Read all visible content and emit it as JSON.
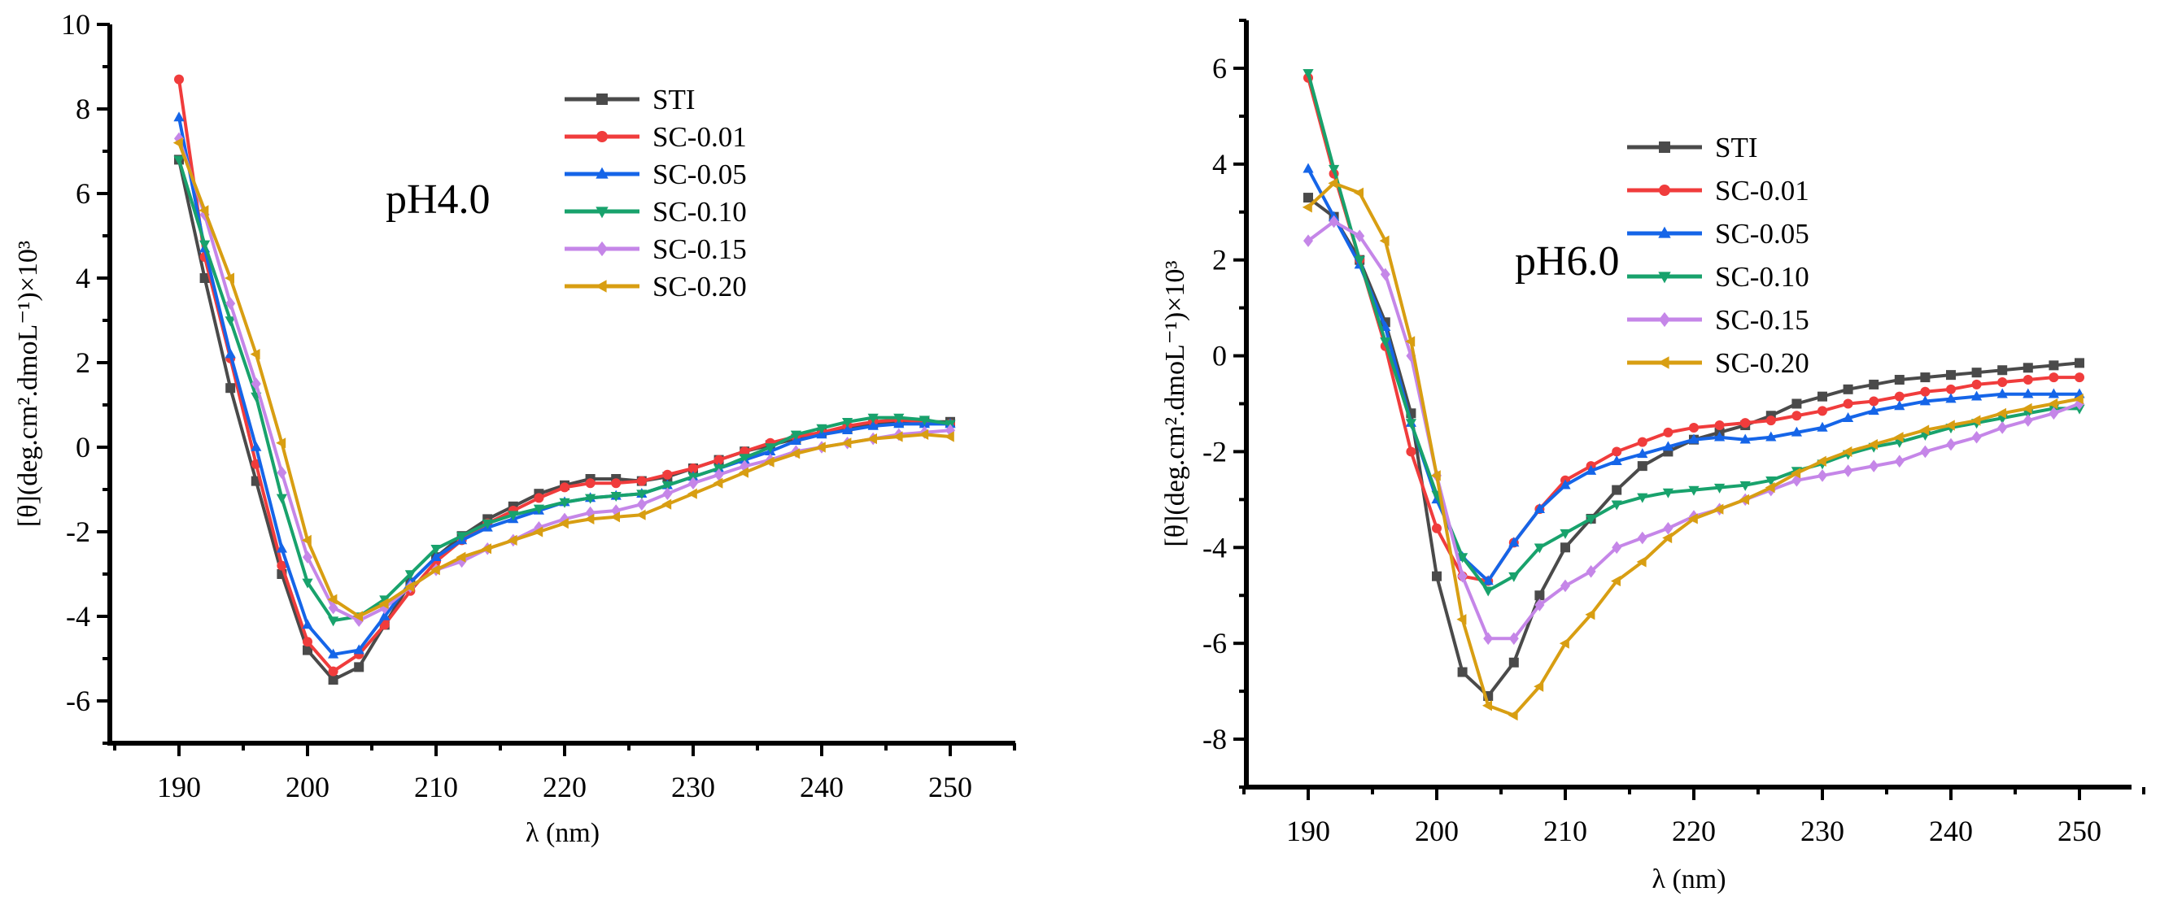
{
  "colors": {
    "STI": "#4a4a4a",
    "SC-0.01": "#f03c3c",
    "SC-0.05": "#1565e8",
    "SC-0.10": "#18a26c",
    "SC-0.15": "#c586e8",
    "SC-0.20": "#d89e12"
  },
  "markers": {
    "STI": "square",
    "SC-0.01": "circle",
    "SC-0.05": "triangle-up",
    "SC-0.10": "triangle-down",
    "SC-0.15": "diamond",
    "SC-0.20": "triangle-left"
  },
  "chart_data": [
    {
      "type": "line",
      "title": "pH4.0",
      "xlabel": "λ (nm)",
      "ylabel": "[θ](deg.cm².dmoL⁻¹)×10³",
      "xlim": [
        185,
        255
      ],
      "ylim": [
        -7,
        10
      ],
      "xticks": [
        190,
        200,
        210,
        220,
        230,
        240,
        250
      ],
      "yticks": [
        -6,
        -4,
        -2,
        0,
        2,
        4,
        6,
        8,
        10
      ],
      "grid": false,
      "legend_position": "top-right",
      "x": [
        190,
        192,
        194,
        196,
        198,
        200,
        202,
        204,
        206,
        208,
        210,
        212,
        214,
        216,
        218,
        220,
        222,
        224,
        226,
        228,
        230,
        232,
        234,
        236,
        238,
        240,
        242,
        244,
        246,
        248,
        250
      ],
      "series": [
        {
          "name": "STI",
          "values": [
            6.8,
            4.0,
            1.4,
            -0.8,
            -3.0,
            -4.8,
            -5.5,
            -5.2,
            -4.2,
            -3.2,
            -2.6,
            -2.1,
            -1.7,
            -1.4,
            -1.1,
            -0.9,
            -0.75,
            -0.75,
            -0.8,
            -0.7,
            -0.5,
            -0.3,
            -0.1,
            0.05,
            0.2,
            0.35,
            0.45,
            0.55,
            0.6,
            0.6,
            0.6
          ]
        },
        {
          "name": "SC-0.01",
          "values": [
            8.7,
            4.5,
            2.1,
            -0.4,
            -2.8,
            -4.6,
            -5.3,
            -4.9,
            -4.2,
            -3.4,
            -2.7,
            -2.2,
            -1.8,
            -1.5,
            -1.2,
            -0.95,
            -0.85,
            -0.85,
            -0.8,
            -0.65,
            -0.5,
            -0.3,
            -0.1,
            0.1,
            0.25,
            0.35,
            0.5,
            0.6,
            0.65,
            0.6,
            0.55
          ]
        },
        {
          "name": "SC-0.05",
          "values": [
            7.8,
            4.7,
            2.2,
            0.0,
            -2.4,
            -4.2,
            -4.9,
            -4.8,
            -4.0,
            -3.2,
            -2.6,
            -2.2,
            -1.9,
            -1.7,
            -1.5,
            -1.3,
            -1.2,
            -1.15,
            -1.1,
            -0.9,
            -0.7,
            -0.5,
            -0.3,
            -0.1,
            0.15,
            0.3,
            0.4,
            0.5,
            0.55,
            0.55,
            0.55
          ]
        },
        {
          "name": "SC-0.10",
          "values": [
            6.8,
            4.8,
            3.0,
            1.2,
            -1.2,
            -3.2,
            -4.1,
            -4.0,
            -3.6,
            -3.0,
            -2.4,
            -2.1,
            -1.8,
            -1.6,
            -1.45,
            -1.3,
            -1.2,
            -1.15,
            -1.1,
            -0.9,
            -0.7,
            -0.5,
            -0.25,
            0.0,
            0.3,
            0.45,
            0.6,
            0.7,
            0.7,
            0.65,
            0.55
          ]
        },
        {
          "name": "SC-0.15",
          "values": [
            7.3,
            5.5,
            3.4,
            1.5,
            -0.6,
            -2.6,
            -3.8,
            -4.1,
            -3.8,
            -3.3,
            -2.9,
            -2.7,
            -2.4,
            -2.2,
            -1.9,
            -1.7,
            -1.55,
            -1.5,
            -1.35,
            -1.1,
            -0.85,
            -0.65,
            -0.45,
            -0.3,
            -0.1,
            0.0,
            0.1,
            0.2,
            0.3,
            0.35,
            0.4
          ]
        },
        {
          "name": "SC-0.20",
          "values": [
            7.2,
            5.6,
            4.0,
            2.2,
            0.1,
            -2.2,
            -3.6,
            -4.0,
            -3.7,
            -3.3,
            -2.9,
            -2.6,
            -2.4,
            -2.2,
            -2.0,
            -1.8,
            -1.7,
            -1.65,
            -1.6,
            -1.35,
            -1.1,
            -0.85,
            -0.6,
            -0.35,
            -0.15,
            0.0,
            0.1,
            0.2,
            0.25,
            0.3,
            0.25
          ]
        }
      ]
    },
    {
      "type": "line",
      "title": "pH6.0",
      "xlabel": "λ (nm)",
      "ylabel": "[θ](deg.cm².dmoL⁻¹)×10³",
      "xlim": [
        185,
        255
      ],
      "ylim": [
        -9,
        7
      ],
      "xticks": [
        190,
        200,
        210,
        220,
        230,
        240,
        250
      ],
      "yticks": [
        -8,
        -6,
        -4,
        -2,
        0,
        2,
        4,
        6
      ],
      "grid": false,
      "legend_position": "top-right",
      "x": [
        190,
        192,
        194,
        196,
        198,
        200,
        202,
        204,
        206,
        208,
        210,
        212,
        214,
        216,
        218,
        220,
        222,
        224,
        226,
        228,
        230,
        232,
        234,
        236,
        238,
        240,
        242,
        244,
        246,
        248,
        250
      ],
      "series": [
        {
          "name": "STI",
          "values": [
            3.3,
            2.9,
            2.0,
            0.7,
            -1.2,
            -4.6,
            -6.6,
            -7.1,
            -6.4,
            -5.0,
            -4.0,
            -3.4,
            -2.8,
            -2.3,
            -2.0,
            -1.75,
            -1.6,
            -1.45,
            -1.25,
            -1.0,
            -0.85,
            -0.7,
            -0.6,
            -0.5,
            -0.45,
            -0.4,
            -0.35,
            -0.3,
            -0.25,
            -0.2,
            -0.15
          ]
        },
        {
          "name": "SC-0.01",
          "values": [
            5.8,
            3.8,
            2.0,
            0.2,
            -2.0,
            -3.6,
            -4.6,
            -4.7,
            -3.9,
            -3.2,
            -2.6,
            -2.3,
            -2.0,
            -1.8,
            -1.6,
            -1.5,
            -1.45,
            -1.4,
            -1.35,
            -1.25,
            -1.15,
            -1.0,
            -0.95,
            -0.85,
            -0.75,
            -0.7,
            -0.6,
            -0.55,
            -0.5,
            -0.45,
            -0.45
          ]
        },
        {
          "name": "SC-0.05",
          "values": [
            3.9,
            2.9,
            1.9,
            0.6,
            -1.4,
            -3.0,
            -4.2,
            -4.7,
            -3.9,
            -3.2,
            -2.7,
            -2.4,
            -2.2,
            -2.05,
            -1.9,
            -1.75,
            -1.7,
            -1.75,
            -1.7,
            -1.6,
            -1.5,
            -1.3,
            -1.15,
            -1.05,
            -0.95,
            -0.9,
            -0.85,
            -0.8,
            -0.8,
            -0.8,
            -0.8
          ]
        },
        {
          "name": "SC-0.10",
          "values": [
            5.9,
            3.9,
            2.0,
            0.3,
            -1.4,
            -2.9,
            -4.2,
            -4.9,
            -4.6,
            -4.0,
            -3.7,
            -3.4,
            -3.1,
            -2.95,
            -2.85,
            -2.8,
            -2.75,
            -2.7,
            -2.6,
            -2.4,
            -2.25,
            -2.05,
            -1.9,
            -1.8,
            -1.65,
            -1.5,
            -1.4,
            -1.3,
            -1.2,
            -1.1,
            -1.1
          ]
        },
        {
          "name": "SC-0.15",
          "values": [
            2.4,
            2.8,
            2.5,
            1.7,
            0.0,
            -2.5,
            -4.6,
            -5.9,
            -5.9,
            -5.2,
            -4.8,
            -4.5,
            -4.0,
            -3.8,
            -3.6,
            -3.35,
            -3.2,
            -3.0,
            -2.8,
            -2.6,
            -2.5,
            -2.4,
            -2.3,
            -2.2,
            -2.0,
            -1.85,
            -1.7,
            -1.5,
            -1.35,
            -1.2,
            -1.0
          ]
        },
        {
          "name": "SC-0.20",
          "values": [
            3.1,
            3.6,
            3.4,
            2.4,
            0.3,
            -2.5,
            -5.5,
            -7.3,
            -7.5,
            -6.9,
            -6.0,
            -5.4,
            -4.7,
            -4.3,
            -3.8,
            -3.4,
            -3.2,
            -3.0,
            -2.75,
            -2.45,
            -2.2,
            -2.0,
            -1.85,
            -1.7,
            -1.55,
            -1.45,
            -1.35,
            -1.2,
            -1.1,
            -1.0,
            -0.9
          ]
        }
      ]
    }
  ]
}
